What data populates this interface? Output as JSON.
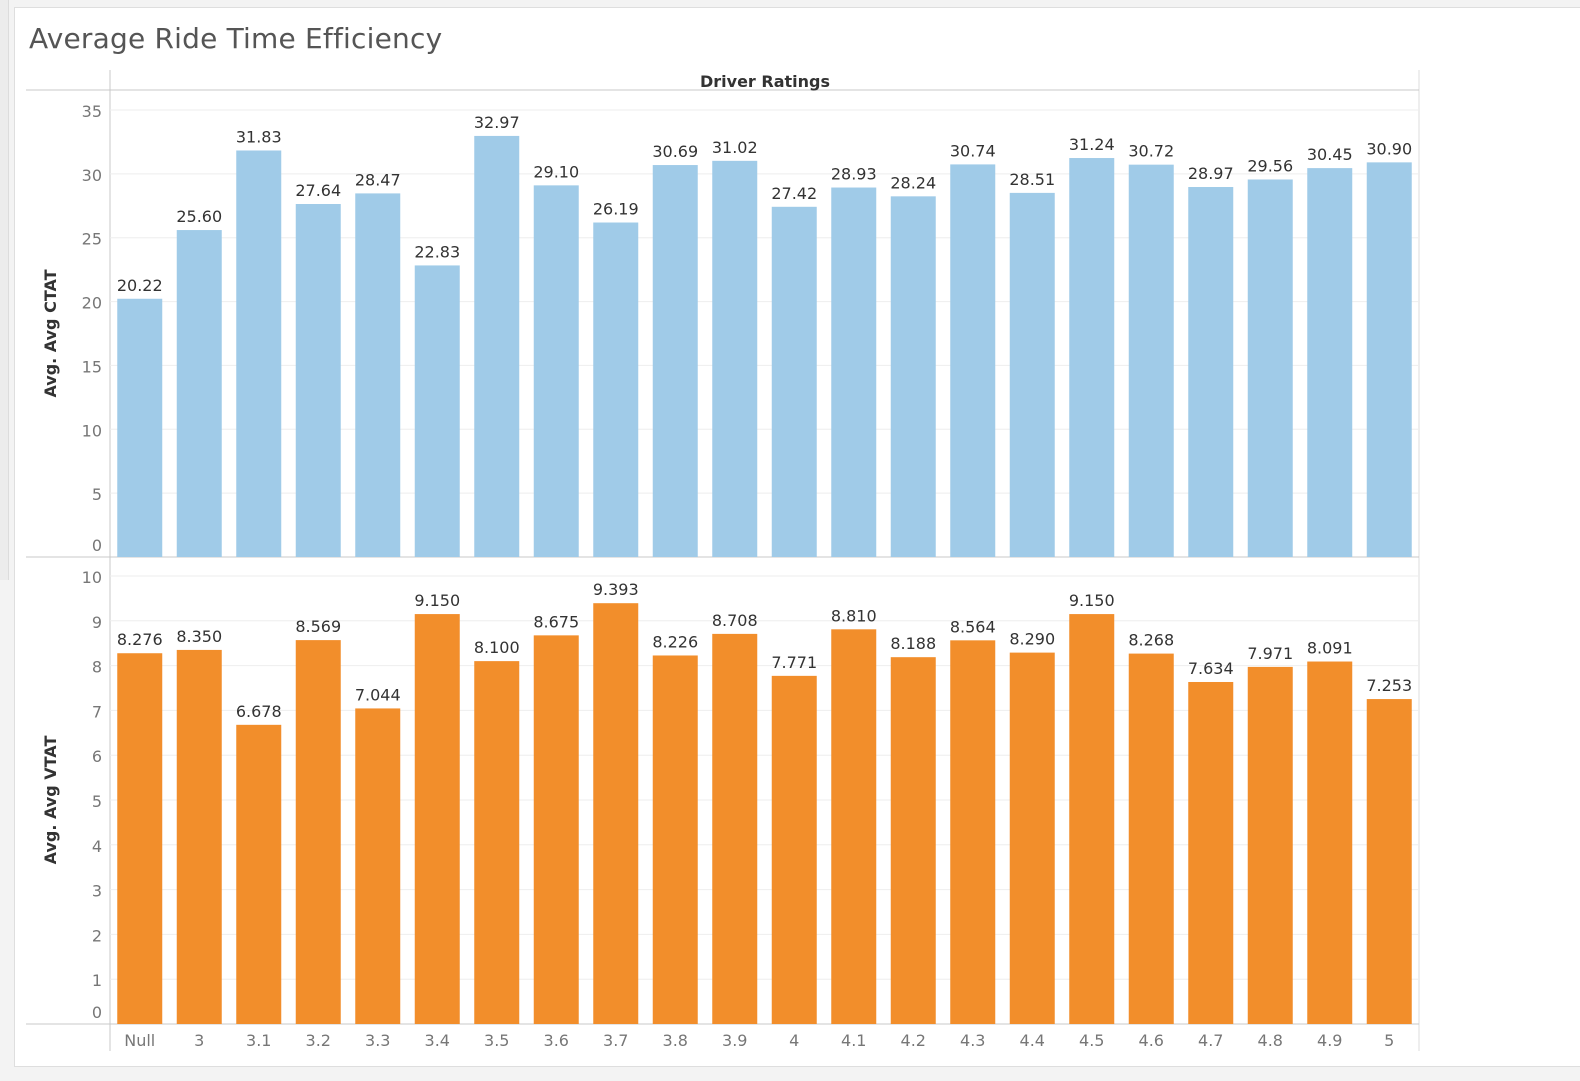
{
  "title": "Average Ride Time Efficiency",
  "chart_data": {
    "type": "bar",
    "column_header": "Driver Ratings",
    "categories": [
      "Null",
      "3",
      "3.1",
      "3.2",
      "3.3",
      "3.4",
      "3.5",
      "3.6",
      "3.7",
      "3.8",
      "3.9",
      "4",
      "4.1",
      "4.2",
      "4.3",
      "4.4",
      "4.5",
      "4.6",
      "4.7",
      "4.8",
      "4.9",
      "5"
    ],
    "panels": [
      {
        "ylabel": "Avg. Avg CTAT",
        "ylim": [
          0,
          35
        ],
        "yticks": [
          "0",
          "5",
          "10",
          "15",
          "20",
          "25",
          "30",
          "35"
        ],
        "color": "#a0cbe8",
        "values": [
          20.22,
          25.6,
          31.83,
          27.64,
          28.47,
          22.83,
          32.97,
          29.1,
          26.19,
          30.69,
          31.02,
          27.42,
          28.93,
          28.24,
          30.74,
          28.51,
          31.24,
          30.72,
          28.97,
          29.56,
          30.45,
          30.9
        ],
        "labels": [
          "20.22",
          "25.60",
          "31.83",
          "27.64",
          "28.47",
          "22.83",
          "32.97",
          "29.10",
          "26.19",
          "30.69",
          "31.02",
          "27.42",
          "28.93",
          "28.24",
          "30.74",
          "28.51",
          "31.24",
          "30.72",
          "28.97",
          "29.56",
          "30.45",
          "30.90"
        ]
      },
      {
        "ylabel": "Avg. Avg VTAT",
        "ylim": [
          0,
          10
        ],
        "yticks": [
          "0",
          "1",
          "2",
          "3",
          "4",
          "5",
          "6",
          "7",
          "8",
          "9",
          "10"
        ],
        "color": "#f28e2b",
        "values": [
          8.276,
          8.35,
          6.678,
          8.569,
          7.044,
          9.15,
          8.1,
          8.675,
          9.393,
          8.226,
          8.708,
          7.771,
          8.81,
          8.188,
          8.564,
          8.29,
          9.15,
          8.268,
          7.634,
          7.971,
          8.091,
          7.253
        ],
        "labels": [
          "8.276",
          "8.350",
          "6.678",
          "8.569",
          "7.044",
          "9.150",
          "8.100",
          "8.675",
          "9.393",
          "8.226",
          "8.708",
          "7.771",
          "8.810",
          "8.188",
          "8.564",
          "8.290",
          "9.150",
          "8.268",
          "7.634",
          "7.971",
          "8.091",
          "7.253"
        ]
      }
    ],
    "grid": true,
    "legend": "none"
  }
}
